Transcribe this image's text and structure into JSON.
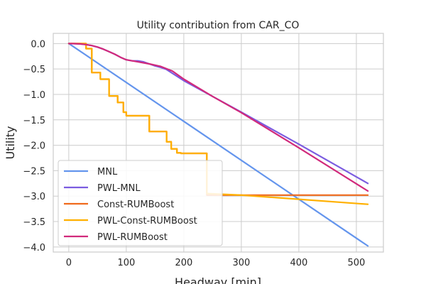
{
  "chart_data": {
    "type": "line",
    "title": "Utility contribution from CAR_CO",
    "xlabel": "Headway [min]",
    "ylabel": "Utility",
    "xlim": [
      -27,
      547
    ],
    "ylim": [
      -4.1,
      0.2
    ],
    "xticks": [
      0,
      100,
      200,
      300,
      400,
      500
    ],
    "xtick_labels": [
      "0",
      "100",
      "200",
      "300",
      "400",
      "500"
    ],
    "yticks": [
      0.0,
      -0.5,
      -1.0,
      -1.5,
      -2.0,
      -2.5,
      -3.0,
      -3.5,
      -4.0
    ],
    "ytick_labels": [
      "0.0",
      "−0.5",
      "−1.0",
      "−1.5",
      "−2.0",
      "−2.5",
      "−3.0",
      "−3.5",
      "−4.0"
    ],
    "grid": true,
    "legend_position": "lower-left",
    "series": [
      {
        "name": "MNL",
        "color": "#6495ED",
        "x": [
          0,
          520
        ],
        "y": [
          0,
          -3.98
        ]
      },
      {
        "name": "PWL-MNL",
        "color": "#7B5CE0",
        "x": [
          0,
          10,
          20,
          30,
          40,
          50,
          60,
          70,
          80,
          90,
          100,
          110,
          120,
          130,
          140,
          150,
          160,
          170,
          200,
          250,
          300,
          400,
          520
        ],
        "y": [
          0,
          -0.002,
          -0.008,
          -0.02,
          -0.04,
          -0.07,
          -0.11,
          -0.16,
          -0.21,
          -0.27,
          -0.32,
          -0.34,
          -0.34,
          -0.36,
          -0.4,
          -0.44,
          -0.47,
          -0.51,
          -0.73,
          -1.04,
          -1.35,
          -1.98,
          -2.75
        ]
      },
      {
        "name": "Const-RUMBoost",
        "color": "#F06A1C",
        "x": [
          0,
          30,
          30,
          40,
          40,
          55,
          55,
          70,
          70,
          85,
          85,
          95,
          95,
          100,
          100,
          140,
          140,
          170,
          170,
          178,
          178,
          188,
          188,
          195,
          195,
          240,
          240,
          520
        ],
        "y": [
          0,
          0,
          -0.1,
          -0.1,
          -0.57,
          -0.57,
          -0.7,
          -0.7,
          -1.03,
          -1.03,
          -1.16,
          -1.16,
          -1.35,
          -1.35,
          -1.42,
          -1.42,
          -1.73,
          -1.73,
          -1.93,
          -1.93,
          -2.07,
          -2.07,
          -2.15,
          -2.15,
          -2.16,
          -2.16,
          -2.98,
          -2.98
        ]
      },
      {
        "name": "PWL-Const-RUMBoost",
        "color": "#FFB000",
        "x": [
          0,
          30,
          30,
          40,
          40,
          55,
          55,
          70,
          70,
          85,
          85,
          95,
          95,
          100,
          100,
          140,
          140,
          170,
          170,
          178,
          178,
          188,
          188,
          195,
          195,
          240,
          240,
          300,
          520
        ],
        "y": [
          0,
          0,
          -0.1,
          -0.1,
          -0.57,
          -0.57,
          -0.7,
          -0.7,
          -1.03,
          -1.03,
          -1.16,
          -1.16,
          -1.35,
          -1.35,
          -1.42,
          -1.42,
          -1.73,
          -1.73,
          -1.93,
          -1.93,
          -2.07,
          -2.07,
          -2.15,
          -2.15,
          -2.16,
          -2.16,
          -2.95,
          -2.98,
          -3.16
        ]
      },
      {
        "name": "PWL-RUMBoost",
        "color": "#D12A7C",
        "x": [
          0,
          10,
          20,
          30,
          40,
          50,
          60,
          70,
          80,
          90,
          100,
          120,
          140,
          160,
          180,
          200,
          250,
          300,
          400,
          520
        ],
        "y": [
          0,
          -0.002,
          -0.008,
          -0.02,
          -0.04,
          -0.07,
          -0.11,
          -0.16,
          -0.21,
          -0.27,
          -0.32,
          -0.36,
          -0.4,
          -0.45,
          -0.54,
          -0.7,
          -1.04,
          -1.36,
          -2.05,
          -2.9
        ]
      }
    ]
  }
}
